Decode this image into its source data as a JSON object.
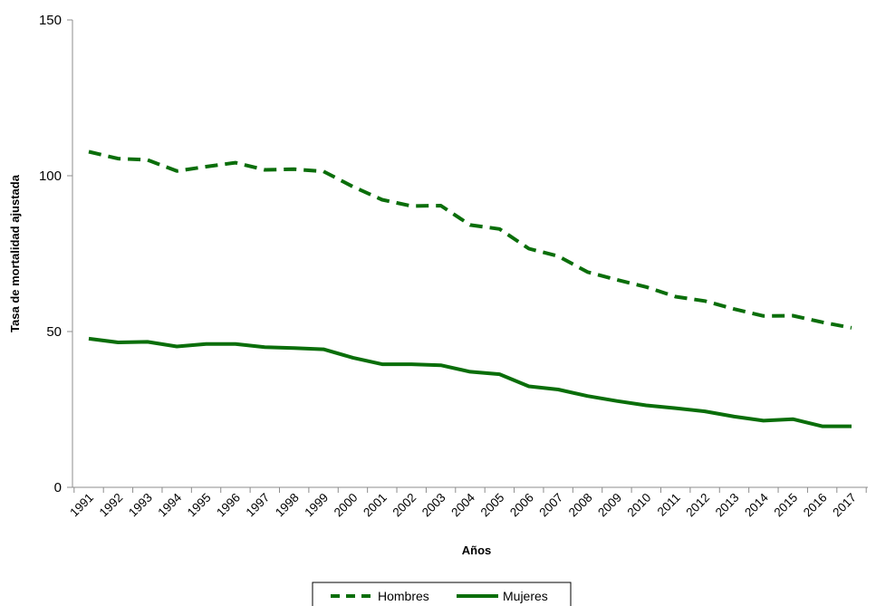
{
  "chart_data": {
    "type": "line",
    "title": "",
    "xlabel": "Años",
    "ylabel": "Tasa de mortalidad ajustada",
    "ylim": [
      0,
      150
    ],
    "yticks": [
      0,
      50,
      100,
      150
    ],
    "grid": false,
    "legend_position": "bottom",
    "categories": [
      "1991",
      "1992",
      "1993",
      "1994",
      "1995",
      "1996",
      "1997",
      "1998",
      "1999",
      "2000",
      "2001",
      "2002",
      "2003",
      "2004",
      "2005",
      "2006",
      "2007",
      "2008",
      "2009",
      "2010",
      "2011",
      "2012",
      "2013",
      "2014",
      "2015",
      "2016",
      "2017"
    ],
    "series": [
      {
        "name": "Hombres",
        "style": "dashed",
        "color": "#0a6e0a",
        "values": [
          107.7,
          105.5,
          105.1,
          101.5,
          102.9,
          104.2,
          101.9,
          102.1,
          101.4,
          96.5,
          92.3,
          90.3,
          90.4,
          84.2,
          82.9,
          76.6,
          74.2,
          69.1,
          66.6,
          64.3,
          61.2,
          59.8,
          57.2,
          55.0,
          55.1,
          53.0,
          51.2
        ]
      },
      {
        "name": "Mujeres",
        "style": "solid",
        "color": "#0a6e0a",
        "values": [
          47.7,
          46.5,
          46.7,
          45.2,
          46.0,
          46.0,
          45.0,
          44.7,
          44.3,
          41.6,
          39.5,
          39.5,
          39.2,
          37.1,
          36.3,
          32.4,
          31.4,
          29.3,
          27.7,
          26.3,
          25.4,
          24.4,
          22.7,
          21.4,
          21.9,
          19.6,
          19.6
        ]
      }
    ]
  }
}
